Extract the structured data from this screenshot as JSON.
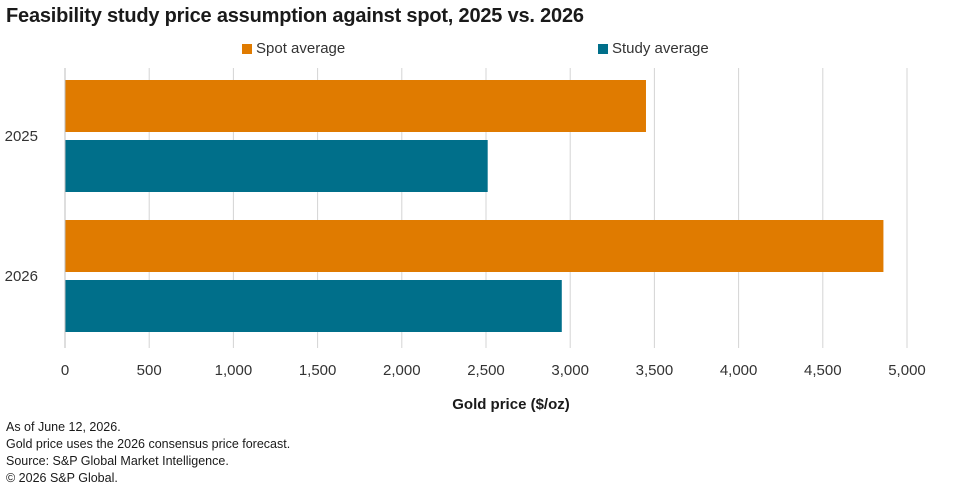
{
  "chart_data": {
    "type": "bar",
    "orientation": "horizontal",
    "title": "Feasibility study price assumption against spot, 2025 vs. 2026",
    "categories": [
      "2025",
      "2026"
    ],
    "series": [
      {
        "name": "Spot average",
        "values": [
          3450,
          4860
        ],
        "color": "#e07b00"
      },
      {
        "name": "Study average",
        "values": [
          2510,
          2950
        ],
        "color": "#006f8a"
      }
    ],
    "xlabel": "Gold price ($/oz)",
    "ylabel": "",
    "xlim": [
      0,
      5000
    ],
    "xticks": [
      0,
      500,
      1000,
      1500,
      2000,
      2500,
      3000,
      3500,
      4000,
      4500,
      5000
    ],
    "xtick_labels": [
      "0",
      "500",
      "1,000",
      "1,500",
      "2,000",
      "2,500",
      "3,000",
      "3,500",
      "4,000",
      "4,500",
      "5,000"
    ],
    "grid": "vertical",
    "legend_position": "top"
  },
  "footnotes": [
    "As of June 12, 2026.",
    "Gold price uses the 2026 consensus price forecast.",
    "Source: S&P Global Market Intelligence.",
    "© 2026 S&P Global."
  ]
}
